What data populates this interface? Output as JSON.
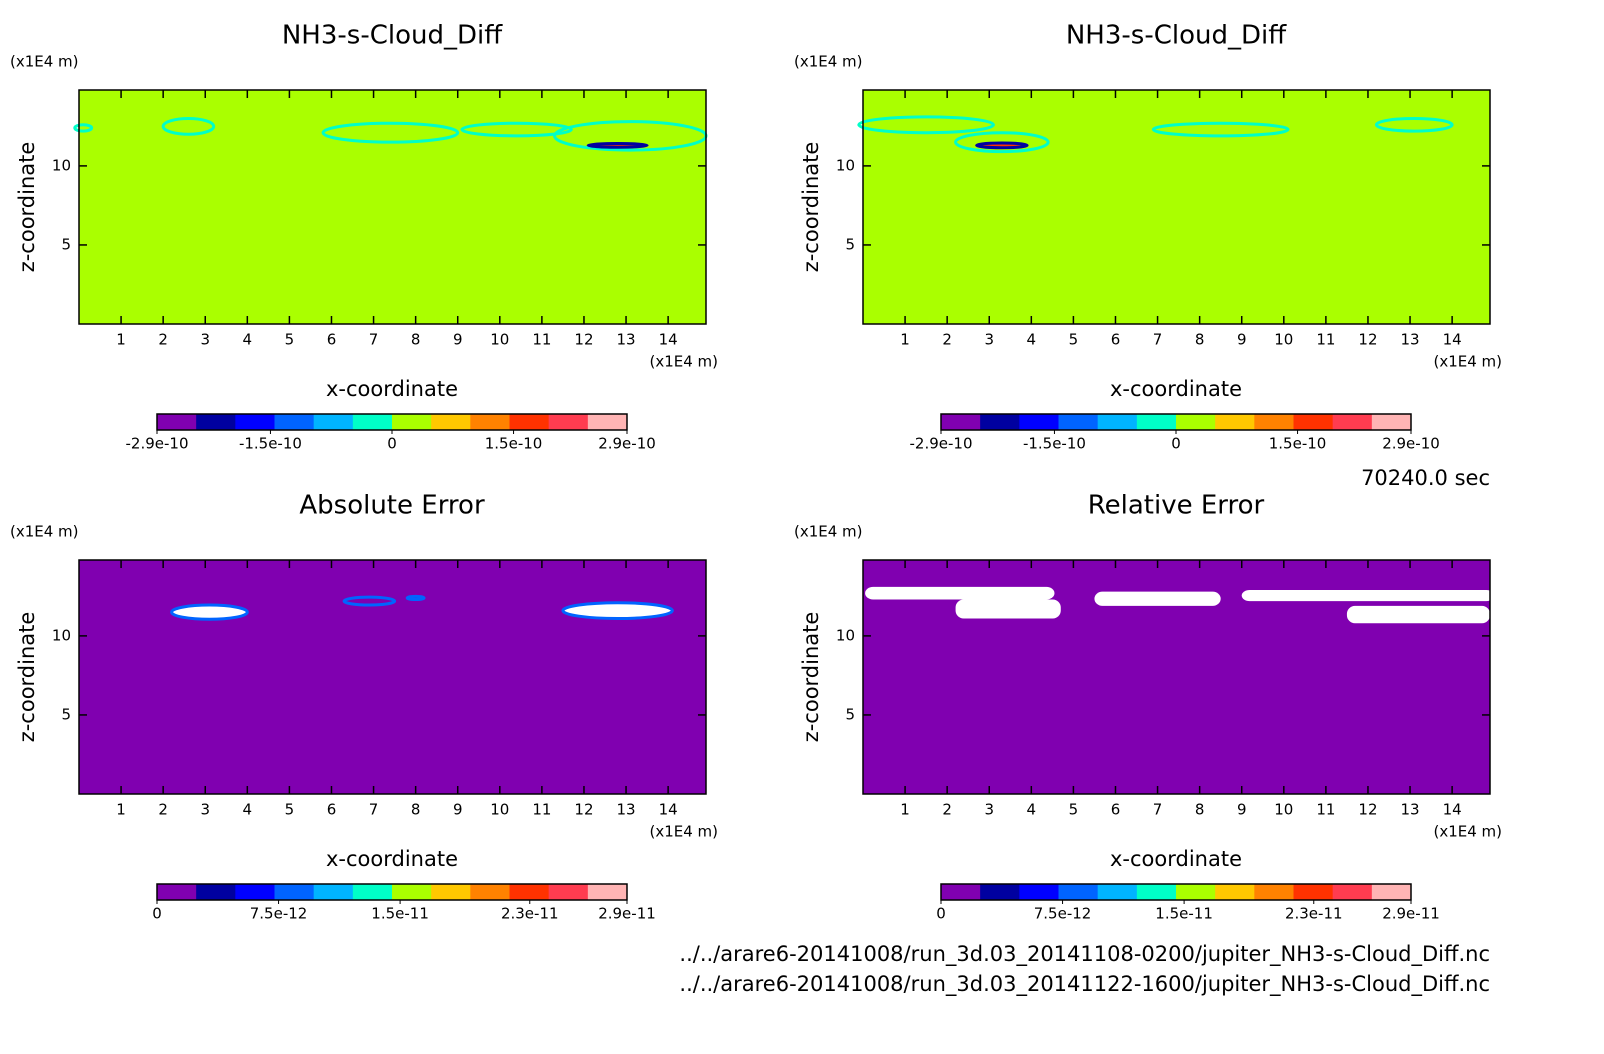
{
  "time": "70240.0 sec",
  "files": [
    "../../arare6-20141008/run_3d.03_20141108-0200/jupiter_NH3-s-Cloud_Diff.nc",
    "../../arare6-20141008/run_3d.03_20141122-1600/jupiter_NH3-s-Cloud_Diff.nc"
  ],
  "chart_data": [
    {
      "type": "contour",
      "title": "NH3-s-Cloud_Diff",
      "xlabel": "x-coordinate",
      "ylabel": "z-coordinate",
      "xunit": "(x1E4 m)",
      "yunit": "(x1E4 m)",
      "xlim": [
        0,
        14.9
      ],
      "ylim": [
        0,
        14.8
      ],
      "xticks": [
        1,
        2,
        3,
        4,
        5,
        6,
        7,
        8,
        9,
        10,
        11,
        12,
        13,
        14
      ],
      "yticks": [
        5,
        10
      ],
      "background": "#aaff00",
      "colorbar": {
        "lim": [
          -2.9e-10,
          2.9e-10
        ],
        "ticks": [
          -2.9e-10,
          -1.5e-10,
          0,
          1.5e-10,
          2.9e-10
        ],
        "colors": [
          "#8000b0",
          "#0000a0",
          "#0000ff",
          "#0064ff",
          "#00b4ff",
          "#00ffc8",
          "#aaff00",
          "#ffc800",
          "#ff8200",
          "#ff3200",
          "#ff3c50",
          "#ffb4b4"
        ]
      }
    },
    {
      "type": "contour",
      "title": "NH3-s-Cloud_Diff",
      "xlabel": "x-coordinate",
      "ylabel": "z-coordinate",
      "xunit": "(x1E4 m)",
      "yunit": "(x1E4 m)",
      "xlim": [
        0,
        14.9
      ],
      "ylim": [
        0,
        14.8
      ],
      "xticks": [
        1,
        2,
        3,
        4,
        5,
        6,
        7,
        8,
        9,
        10,
        11,
        12,
        13,
        14
      ],
      "yticks": [
        5,
        10
      ],
      "background": "#aaff00",
      "colorbar": {
        "lim": [
          -2.9e-10,
          2.9e-10
        ],
        "ticks": [
          -2.9e-10,
          -1.5e-10,
          0,
          1.5e-10,
          2.9e-10
        ],
        "colors": [
          "#8000b0",
          "#0000a0",
          "#0000ff",
          "#0064ff",
          "#00b4ff",
          "#00ffc8",
          "#aaff00",
          "#ffc800",
          "#ff8200",
          "#ff3200",
          "#ff3c50",
          "#ffb4b4"
        ]
      }
    },
    {
      "type": "contour",
      "title": "Absolute Error",
      "xlabel": "x-coordinate",
      "ylabel": "z-coordinate",
      "xunit": "(x1E4 m)",
      "yunit": "(x1E4 m)",
      "xlim": [
        0,
        14.9
      ],
      "ylim": [
        0,
        14.8
      ],
      "xticks": [
        1,
        2,
        3,
        4,
        5,
        6,
        7,
        8,
        9,
        10,
        11,
        12,
        13,
        14
      ],
      "yticks": [
        5,
        10
      ],
      "background": "#8000b0",
      "colorbar": {
        "lim": [
          0,
          2.9e-11
        ],
        "ticks": [
          0,
          7.5e-12,
          1.5e-11,
          2.3e-11,
          2.9e-11
        ],
        "colors": [
          "#8000b0",
          "#0000a0",
          "#0000ff",
          "#0064ff",
          "#00b4ff",
          "#00ffc8",
          "#aaff00",
          "#ffc800",
          "#ff8200",
          "#ff3200",
          "#ff3c50",
          "#ffb4b4"
        ]
      }
    },
    {
      "type": "contour",
      "title": "Relative Error",
      "xlabel": "x-coordinate",
      "ylabel": "z-coordinate",
      "xunit": "(x1E4 m)",
      "yunit": "(x1E4 m)",
      "xlim": [
        0,
        14.9
      ],
      "ylim": [
        0,
        14.8
      ],
      "xticks": [
        1,
        2,
        3,
        4,
        5,
        6,
        7,
        8,
        9,
        10,
        11,
        12,
        13,
        14
      ],
      "yticks": [
        5,
        10
      ],
      "background": "#8000b0",
      "colorbar": {
        "lim": [
          0,
          2.9e-11
        ],
        "ticks": [
          0,
          7.5e-12,
          1.5e-11,
          2.3e-11,
          2.9e-11
        ],
        "colors": [
          "#8000b0",
          "#0000a0",
          "#0000ff",
          "#0064ff",
          "#00b4ff",
          "#00ffc8",
          "#aaff00",
          "#ffc800",
          "#ff8200",
          "#ff3200",
          "#ff3c50",
          "#ffb4b4"
        ]
      }
    }
  ]
}
